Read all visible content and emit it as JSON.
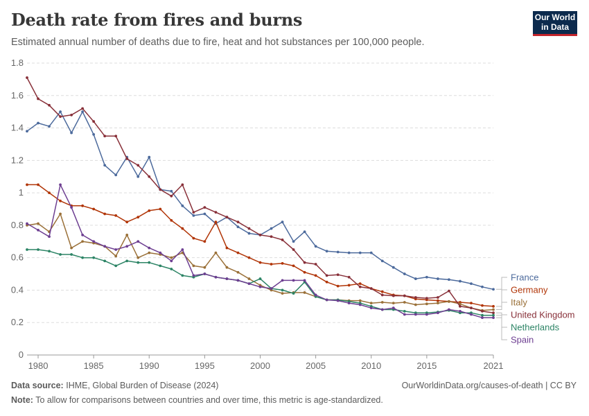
{
  "header": {
    "title": "Death rate from fires and burns",
    "subtitle": "Estimated annual number of deaths due to fire, heat and hot substances per 100,000 people."
  },
  "logo": {
    "line1": "Our World",
    "line2": "in Data",
    "bg": "#0c2a4d",
    "accent": "#c3242b"
  },
  "footer": {
    "source_label": "Data source:",
    "source_text": "IHME, Global Burden of Disease (2024)",
    "right_text": "OurWorldinData.org/causes-of-death | CC BY",
    "note_label": "Note:",
    "note_text": "To allow for comparisons between countries and over time, this metric is age-standardized."
  },
  "chart_data": {
    "type": "line",
    "ylim": [
      0,
      1.8
    ],
    "xlim": [
      1979,
      2021
    ],
    "yticks": [
      0,
      0.2,
      0.4,
      0.6,
      0.8,
      1,
      1.2,
      1.4,
      1.6,
      1.8
    ],
    "ytick_labels": [
      "0",
      "0.2",
      "0.4",
      "0.6",
      "0.8",
      "1",
      "1.2",
      "1.4",
      "1.6",
      "1.8"
    ],
    "xticks": [
      1980,
      1985,
      1990,
      1995,
      2000,
      2005,
      2010,
      2015,
      2021
    ],
    "xtick_labels": [
      "1980",
      "1985",
      "1990",
      "1995",
      "2000",
      "2005",
      "2010",
      "2015",
      "2021"
    ],
    "grid": "horizontal dashed",
    "legend": "right, labels at line ends",
    "x": [
      1979,
      1980,
      1981,
      1982,
      1983,
      1984,
      1985,
      1986,
      1987,
      1988,
      1989,
      1990,
      1991,
      1992,
      1993,
      1994,
      1995,
      1996,
      1997,
      1998,
      1999,
      2000,
      2001,
      2002,
      2003,
      2004,
      2005,
      2006,
      2007,
      2008,
      2009,
      2010,
      2011,
      2012,
      2013,
      2014,
      2015,
      2016,
      2017,
      2018,
      2019,
      2020,
      2021
    ],
    "series": [
      {
        "name": "France",
        "color": "#4c6a9c",
        "values": [
          1.38,
          1.43,
          1.41,
          1.5,
          1.37,
          1.5,
          1.36,
          1.17,
          1.11,
          1.22,
          1.1,
          1.22,
          1.02,
          1.01,
          0.92,
          0.86,
          0.87,
          0.81,
          0.85,
          0.79,
          0.75,
          0.74,
          0.78,
          0.82,
          0.7,
          0.76,
          0.67,
          0.64,
          0.635,
          0.63,
          0.63,
          0.63,
          0.58,
          0.54,
          0.5,
          0.47,
          0.48,
          0.47,
          0.465,
          0.455,
          0.44,
          0.42,
          0.405
        ]
      },
      {
        "name": "Germany",
        "color": "#b13507",
        "values": [
          1.05,
          1.05,
          1.0,
          0.95,
          0.92,
          0.92,
          0.9,
          0.87,
          0.86,
          0.82,
          0.85,
          0.89,
          0.9,
          0.83,
          0.78,
          0.72,
          0.7,
          0.82,
          0.66,
          0.63,
          0.6,
          0.57,
          0.56,
          0.565,
          0.55,
          0.51,
          0.49,
          0.45,
          0.425,
          0.43,
          0.44,
          0.41,
          0.39,
          0.37,
          0.365,
          0.345,
          0.34,
          0.335,
          0.33,
          0.325,
          0.32,
          0.305,
          0.3
        ]
      },
      {
        "name": "Italy",
        "color": "#9a7038",
        "values": [
          0.8,
          0.81,
          0.76,
          0.87,
          0.66,
          0.7,
          0.69,
          0.67,
          0.61,
          0.74,
          0.6,
          0.63,
          0.62,
          0.6,
          0.63,
          0.55,
          0.54,
          0.63,
          0.54,
          0.51,
          0.47,
          0.43,
          0.4,
          0.38,
          0.385,
          0.385,
          0.36,
          0.34,
          0.34,
          0.335,
          0.335,
          0.32,
          0.325,
          0.32,
          0.325,
          0.31,
          0.315,
          0.32,
          0.33,
          0.315,
          0.29,
          0.275,
          0.28
        ]
      },
      {
        "name": "United Kingdom",
        "color": "#883039",
        "values": [
          1.71,
          1.58,
          1.54,
          1.47,
          1.48,
          1.52,
          1.44,
          1.35,
          1.35,
          1.21,
          1.17,
          1.1,
          1.02,
          0.98,
          1.05,
          0.88,
          0.91,
          0.88,
          0.85,
          0.82,
          0.78,
          0.74,
          0.73,
          0.71,
          0.65,
          0.57,
          0.56,
          0.49,
          0.495,
          0.48,
          0.42,
          0.41,
          0.37,
          0.365,
          0.365,
          0.355,
          0.35,
          0.355,
          0.395,
          0.3,
          0.29,
          0.27,
          0.26
        ]
      },
      {
        "name": "Netherlands",
        "color": "#2c8465",
        "values": [
          0.65,
          0.65,
          0.64,
          0.62,
          0.62,
          0.6,
          0.6,
          0.58,
          0.55,
          0.58,
          0.57,
          0.57,
          0.55,
          0.53,
          0.49,
          0.48,
          0.5,
          0.48,
          0.47,
          0.46,
          0.44,
          0.47,
          0.41,
          0.4,
          0.38,
          0.45,
          0.36,
          0.34,
          0.34,
          0.33,
          0.32,
          0.3,
          0.28,
          0.28,
          0.27,
          0.26,
          0.26,
          0.265,
          0.275,
          0.26,
          0.26,
          0.245,
          0.245
        ]
      },
      {
        "name": "Spain",
        "color": "#6d3e91",
        "values": [
          0.81,
          0.77,
          0.73,
          1.05,
          0.91,
          0.74,
          0.7,
          0.67,
          0.65,
          0.67,
          0.7,
          0.66,
          0.63,
          0.58,
          0.65,
          0.49,
          0.5,
          0.48,
          0.47,
          0.46,
          0.44,
          0.42,
          0.41,
          0.46,
          0.46,
          0.46,
          0.37,
          0.34,
          0.335,
          0.32,
          0.31,
          0.29,
          0.28,
          0.29,
          0.25,
          0.25,
          0.25,
          0.26,
          0.28,
          0.27,
          0.25,
          0.23,
          0.23
        ]
      }
    ]
  }
}
